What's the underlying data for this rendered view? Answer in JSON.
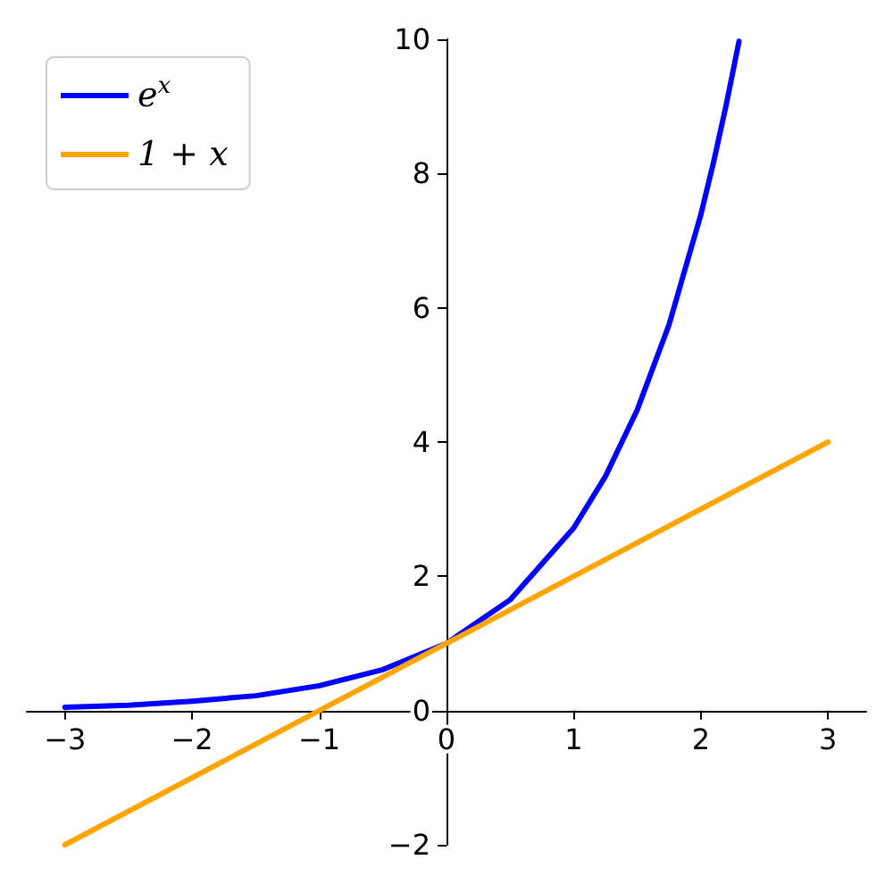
{
  "chart_data": {
    "type": "line",
    "xlim": [
      -3.3,
      3.3
    ],
    "ylim": [
      -2,
      10
    ],
    "xticks": [
      -3,
      -2,
      -1,
      0,
      1,
      2,
      3
    ],
    "yticks": [
      -2,
      0,
      2,
      4,
      6,
      8,
      10
    ],
    "grid": false,
    "legend": "top left",
    "marker": "none",
    "line_style": "solid",
    "series": [
      {
        "name": "e$^{x}$",
        "color": "#0000ff",
        "x": [
          -3,
          -2.5,
          -2,
          -1.5,
          -1,
          -0.5,
          0,
          0.5,
          1,
          1.25,
          1.5,
          1.75,
          2,
          2.1,
          2.2,
          2.3
        ],
        "values": [
          0.05,
          0.08,
          0.14,
          0.22,
          0.37,
          0.61,
          1,
          1.65,
          2.72,
          3.49,
          4.48,
          5.75,
          7.39,
          8.17,
          9.03,
          9.97
        ]
      },
      {
        "name": "1 + x",
        "color": "#ffa500",
        "x": [
          -3,
          3
        ],
        "values": [
          -2,
          4
        ]
      }
    ]
  }
}
